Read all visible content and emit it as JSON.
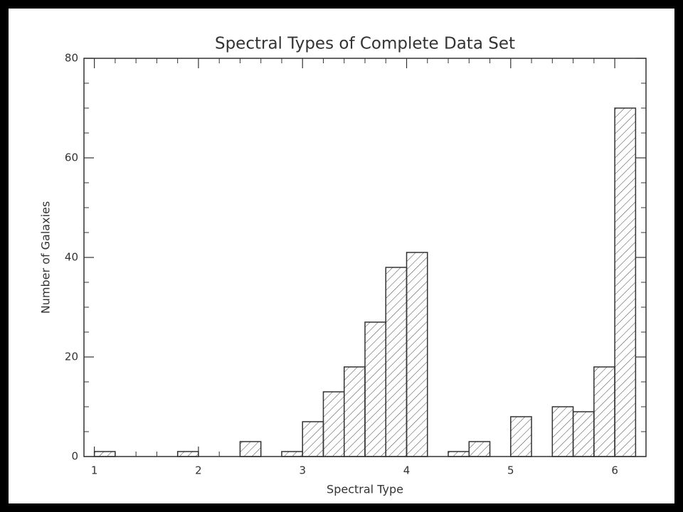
{
  "chart_data": {
    "type": "histogram",
    "title": "Spectral Types of Complete Data Set",
    "x_label": "Spectral Type",
    "y_label": "Number of Galaxies",
    "bins": [
      1.0,
      1.2,
      1.4,
      1.6,
      1.8,
      2.0,
      2.2,
      2.4,
      2.6,
      2.8,
      3.0,
      3.2,
      3.4,
      3.6,
      3.8,
      4.0,
      4.2,
      4.4,
      4.6,
      4.8,
      5.0,
      5.2,
      5.4,
      5.6,
      5.8,
      6.0,
      6.2
    ],
    "values": [
      1,
      0,
      0,
      0,
      1,
      0,
      0,
      3,
      0,
      1,
      7,
      13,
      18,
      27,
      38,
      41,
      0,
      1,
      3,
      0,
      8,
      0,
      10,
      9,
      18,
      70
    ],
    "color": "#333333",
    "xlim": [
      0.9,
      6.3
    ],
    "xticks": [
      1,
      2,
      3,
      4,
      5,
      6
    ],
    "ylim": [
      0,
      80
    ],
    "yticks": [
      0,
      20,
      40,
      60,
      80
    ]
  }
}
